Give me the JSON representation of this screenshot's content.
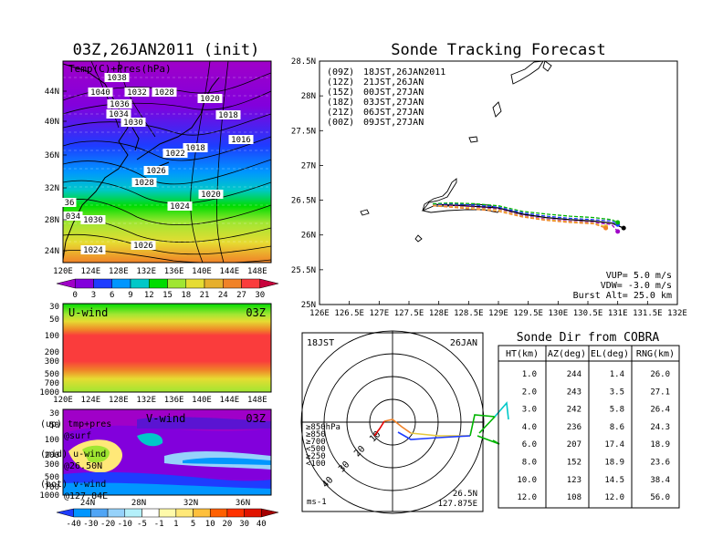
{
  "init_panel": {
    "title": "03Z,26JAN2011 (init)",
    "subtitle": "Temp(C)+Pres(hPa)",
    "lat_ticks": [
      "44N",
      "40N",
      "36N",
      "32N",
      "28N",
      "24N"
    ],
    "lon_ticks": [
      "120E",
      "124E",
      "128E",
      "132E",
      "136E",
      "140E",
      "144E",
      "148E"
    ],
    "pressure_labels": [
      "1038",
      "1040",
      "1032",
      "1028",
      "1036",
      "1034",
      "1030",
      "1020",
      "1018",
      "1016",
      "1018",
      "1022",
      "1026",
      "1028",
      "1020",
      "1024",
      "36",
      "034",
      "1030",
      "1024",
      "1026"
    ],
    "colorbar": {
      "ticks": [
        "0",
        "3",
        "6",
        "9",
        "12",
        "15",
        "18",
        "21",
        "24",
        "27",
        "30"
      ],
      "colors": [
        "#a000c8",
        "#8200dc",
        "#1e3cff",
        "#0096ff",
        "#00c8c8",
        "#00dc00",
        "#a0e632",
        "#e6dc32",
        "#e6af2d",
        "#f08228",
        "#fa3c3c",
        "#c8003c"
      ]
    }
  },
  "uwind_panel": {
    "title": "U-wind",
    "time": "03Z",
    "y_ticks": [
      "30",
      "50",
      "100",
      "200",
      "300",
      "500",
      "700",
      "1000"
    ],
    "x_ticks": [
      "120E",
      "124E",
      "128E",
      "132E",
      "136E",
      "140E",
      "144E",
      "148E"
    ]
  },
  "vwind_panel": {
    "title": "V-wind",
    "time": "03Z",
    "y_ticks": [
      "30",
      "50",
      "100",
      "200",
      "300",
      "500",
      "700",
      "1000"
    ],
    "x_ticks": [
      "24N",
      "28N",
      "32N",
      "36N"
    ],
    "colorbar": {
      "ticks": [
        "-40",
        "-30",
        "-20",
        "-10",
        "-5",
        "-1",
        "1",
        "5",
        "10",
        "20",
        "30",
        "40"
      ],
      "colors": [
        "#1e3cff",
        "#0096ff",
        "#50a5f5",
        "#96d2fa",
        "#b4f0fa",
        "#ffffff",
        "#fffaaa",
        "#ffe878",
        "#ffc03c",
        "#ff6000",
        "#ff3200",
        "#e11400",
        "#a50000"
      ]
    }
  },
  "legend_notes": [
    {
      "a": "(up) tmp+pres",
      "b": "@surf"
    },
    {
      "a": "(mid) u-wind",
      "b": "@26.50N"
    },
    {
      "a": "(bot) v-wind",
      "b": "@127.84E"
    }
  ],
  "tracking": {
    "title": "Sonde Tracking Forecast",
    "lat_ticks": [
      "28.5N",
      "28N",
      "27.5N",
      "27N",
      "26.5N",
      "26N",
      "25.5N",
      "25N"
    ],
    "lon_ticks": [
      "126E",
      "126.5E",
      "127E",
      "127.5E",
      "128E",
      "128.5E",
      "129E",
      "129.5E",
      "130E",
      "130.5E",
      "131E",
      "131.5E",
      "132E"
    ],
    "legend": [
      {
        "code": "(09Z)",
        "label": "18JST,26JAN2011",
        "color": "#000000"
      },
      {
        "code": "(12Z)",
        "label": "21JST,26JAN",
        "color": "#a000c8"
      },
      {
        "code": "(15Z)",
        "label": "00JST,27JAN",
        "color": "#1e3cff"
      },
      {
        "code": "(18Z)",
        "label": "03JST,27JAN",
        "color": "#00b400"
      },
      {
        "code": "(21Z)",
        "label": "06JST,27JAN",
        "color": "#e6c83c"
      },
      {
        "code": "(00Z)",
        "label": "09JST,27JAN",
        "color": "#f08228"
      }
    ],
    "params": [
      "VUP=  5.0 m/s",
      "VDW= -3.0 m/s",
      "Burst Alt= 25.0 km"
    ]
  },
  "polar": {
    "left_label": "18JST",
    "right_label": "26JAN",
    "unit": "ms-1",
    "ring_labels": [
      "10",
      "20",
      "30",
      "40"
    ],
    "level_legend": [
      {
        "label": "≥850hPa",
        "color": "#e60000"
      },
      {
        "label": "≥850",
        "color": "#f08228"
      },
      {
        "label": "≥700",
        "color": "#e6c83c"
      },
      {
        "label": "<500",
        "color": "#00b400"
      },
      {
        "label": "≥250",
        "color": "#00c8c8"
      },
      {
        "label": "<100",
        "color": "#1e3cff"
      }
    ],
    "location": [
      "26.5N",
      "127.875E"
    ]
  },
  "table": {
    "title": "Sonde Dir from COBRA",
    "headers": [
      "HT(km)",
      "AZ(deg)",
      "EL(deg)",
      "RNG(km)"
    ],
    "rows": [
      [
        "1.0",
        "244",
        "1.4",
        "26.0"
      ],
      [
        "2.0",
        "243",
        "3.5",
        "27.1"
      ],
      [
        "3.0",
        "242",
        "5.8",
        "26.4"
      ],
      [
        "4.0",
        "236",
        "8.6",
        "24.3"
      ],
      [
        "6.0",
        "207",
        "17.4",
        "18.9"
      ],
      [
        "8.0",
        "152",
        "18.9",
        "23.6"
      ],
      [
        "10.0",
        "123",
        "14.5",
        "38.4"
      ],
      [
        "12.0",
        "108",
        "12.0",
        "56.0"
      ]
    ]
  },
  "chart_data": [
    {
      "type": "heatmap",
      "title": "03Z,26JAN2011 (init)",
      "subtitle": "Temp(C)+Pres(hPa)",
      "xlim": [
        120,
        150
      ],
      "ylim": [
        22,
        46
      ],
      "colorbar_levels": [
        0,
        3,
        6,
        9,
        12,
        15,
        18,
        21,
        24,
        27,
        30
      ]
    },
    {
      "type": "heatmap",
      "title": "U-wind",
      "xlim": [
        120,
        150
      ],
      "y_pressure_hPa": [
        30,
        50,
        100,
        200,
        300,
        500,
        700,
        1000
      ]
    },
    {
      "type": "heatmap",
      "title": "V-wind",
      "xlim": [
        22,
        38
      ],
      "colorbar_levels": [
        -40,
        -30,
        -20,
        -10,
        -5,
        -1,
        1,
        5,
        10,
        20,
        30,
        40
      ]
    },
    {
      "type": "line",
      "title": "Sonde Tracking Forecast",
      "xlim": [
        126,
        132
      ],
      "ylim": [
        25,
        28.5
      ],
      "series": [
        {
          "name": "(09Z) 18JST,26JAN2011",
          "color": "#000000",
          "x": [
            127.9,
            128.2,
            128.6,
            129.0,
            129.4,
            129.8,
            130.2,
            130.6,
            130.9,
            131.1
          ],
          "y": [
            26.44,
            26.43,
            26.41,
            26.39,
            26.3,
            26.25,
            26.22,
            26.2,
            26.17,
            26.1
          ]
        },
        {
          "name": "(12Z) 21JST,26JAN",
          "color": "#a000c8",
          "x": [
            127.9,
            128.2,
            128.6,
            129.0,
            129.4,
            129.8,
            130.2,
            130.6,
            130.9,
            131.0
          ],
          "y": [
            26.44,
            26.42,
            26.4,
            26.37,
            26.28,
            26.23,
            26.2,
            26.18,
            26.15,
            26.05
          ]
        },
        {
          "name": "(15Z) 00JST,27JAN",
          "color": "#1e3cff",
          "x": [
            127.9,
            128.2,
            128.6,
            129.0,
            129.4,
            129.8,
            130.2,
            130.6,
            130.9,
            131.0
          ],
          "y": [
            26.44,
            26.45,
            26.43,
            26.4,
            26.32,
            26.27,
            26.24,
            26.22,
            26.2,
            26.15
          ]
        },
        {
          "name": "(18Z) 03JST,27JAN",
          "color": "#00b400",
          "x": [
            127.9,
            128.2,
            128.6,
            129.0,
            129.4,
            129.8,
            130.2,
            130.6,
            130.9,
            131.0
          ],
          "y": [
            26.45,
            26.46,
            26.45,
            26.42,
            26.34,
            26.3,
            26.27,
            26.25,
            26.22,
            26.18
          ]
        },
        {
          "name": "(21Z) 06JST,27JAN",
          "color": "#e6c83c",
          "x": [
            127.9,
            128.2,
            128.6,
            129.0,
            129.4,
            129.8,
            130.2,
            130.6,
            130.8
          ],
          "y": [
            26.43,
            26.41,
            26.39,
            26.36,
            26.27,
            26.22,
            26.19,
            26.17,
            26.12
          ]
        },
        {
          "name": "(00Z) 09JST,27JAN",
          "color": "#f08228",
          "x": [
            127.9,
            128.2,
            128.6,
            129.0,
            129.4,
            129.8,
            130.2,
            130.6,
            130.8
          ],
          "y": [
            26.42,
            26.4,
            26.37,
            26.34,
            26.26,
            26.21,
            26.18,
            26.16,
            26.1
          ]
        }
      ]
    },
    {
      "type": "line",
      "title": "Sonde Dir from COBRA",
      "columns": [
        "HT(km)",
        "AZ(deg)",
        "EL(deg)",
        "RNG(km)"
      ],
      "ht_km": [
        1.0,
        2.0,
        3.0,
        4.0,
        6.0,
        8.0,
        10.0,
        12.0
      ],
      "az_deg": [
        244,
        243,
        242,
        236,
        207,
        152,
        123,
        108
      ],
      "el_deg": [
        1.4,
        3.5,
        5.8,
        8.6,
        17.4,
        18.9,
        14.5,
        12.0
      ],
      "rng_km": [
        26.0,
        27.1,
        26.4,
        24.3,
        18.9,
        23.6,
        38.4,
        56.0
      ]
    }
  ]
}
